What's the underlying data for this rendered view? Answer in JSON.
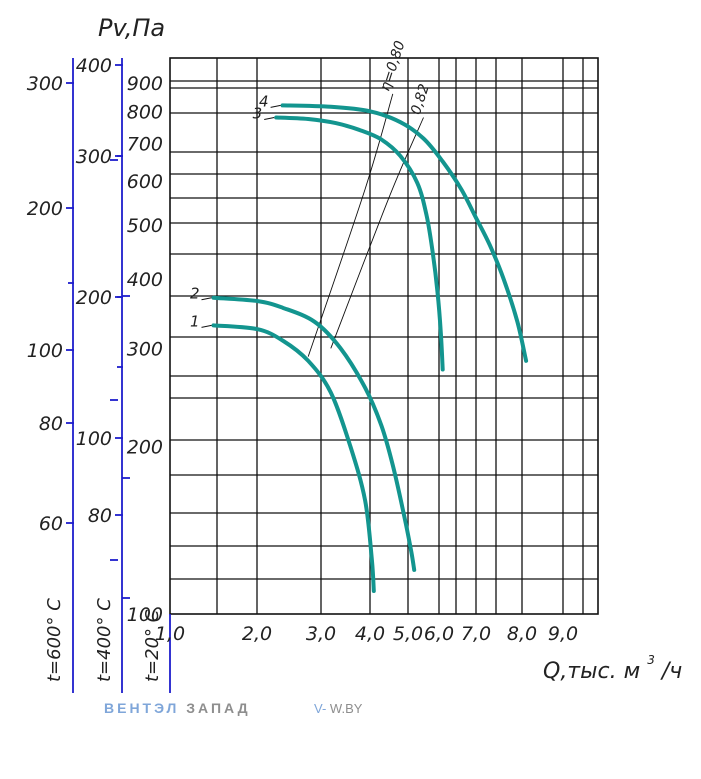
{
  "chart_data": {
    "type": "line",
    "ylabel": "Pv,Па",
    "xlabel_main": "Q,тыс. м",
    "xlabel_sup": "3",
    "xlabel_tail": "/ч",
    "xlim": [
      1.0,
      10.0
    ],
    "ylim": [
      100,
      1000
    ],
    "y_scale": "log",
    "x_scale": "linear (labels drawn as printed)",
    "grid": true,
    "x_tick_labels": [
      "1,0",
      "2,0",
      "3,0",
      "4,0",
      "5,0",
      "6,0",
      "7,0",
      "8,0",
      "9,0"
    ],
    "y_tick_labels": [
      "100",
      "200",
      "300",
      "400",
      "500",
      "600",
      "700",
      "800",
      "900"
    ],
    "secondary_axes": [
      {
        "label": "t=20° C",
        "ticks": [
          "100",
          "200",
          "300",
          "400",
          "500",
          "600",
          "700",
          "800",
          "900"
        ]
      },
      {
        "label": "t=400° C",
        "ticks": [
          "80",
          "100",
          "200",
          "300",
          "400"
        ]
      },
      {
        "label": "t=600° C",
        "ticks": [
          "60",
          "80",
          "100",
          "200",
          "300"
        ]
      }
    ],
    "series": [
      {
        "name": "1",
        "x": [
          1.5,
          2.0,
          2.4,
          2.8,
          3.2,
          3.6,
          3.9,
          4.05,
          4.1
        ],
        "y": [
          330,
          325,
          310,
          285,
          250,
          200,
          160,
          125,
          110
        ]
      },
      {
        "name": "2",
        "x": [
          1.5,
          2.0,
          2.4,
          2.9,
          3.4,
          3.9,
          4.3,
          4.6,
          4.9,
          5.1,
          5.2
        ],
        "y": [
          370,
          365,
          355,
          335,
          300,
          255,
          218,
          185,
          150,
          130,
          120
        ]
      },
      {
        "name": "3",
        "x": [
          2.3,
          2.8,
          3.3,
          3.8,
          4.3,
          4.8,
          5.3,
          5.6,
          5.8,
          5.95,
          6.05,
          6.1
        ],
        "y": [
          780,
          775,
          762,
          740,
          712,
          665,
          595,
          520,
          445,
          380,
          320,
          275
        ]
      },
      {
        "name": "4",
        "x": [
          2.4,
          3.2,
          4.0,
          4.8,
          5.5,
          6.1,
          6.6,
          7.0,
          7.3,
          7.6,
          7.9,
          8.1
        ],
        "y": [
          820,
          815,
          800,
          765,
          715,
          650,
          580,
          515,
          460,
          400,
          335,
          285
        ]
      }
    ],
    "efficiency_lines": [
      {
        "label": "η=0,80",
        "x": [
          2.8,
          3.9,
          4.6
        ],
        "y": [
          290,
          580,
          860
        ]
      },
      {
        "label": "0,82",
        "x": [
          3.2,
          4.5,
          5.5
        ],
        "y": [
          300,
          560,
          780
        ]
      }
    ],
    "colors": {
      "curve": "#13958f",
      "axis": "#1d1dcc",
      "grid": "#111111"
    }
  },
  "watermark": {
    "brand_blue": "ВЕНТЭЛ",
    "brand_gray": "ЗАПАД",
    "site_blue": "V-",
    "site_gray": "W.BY"
  }
}
